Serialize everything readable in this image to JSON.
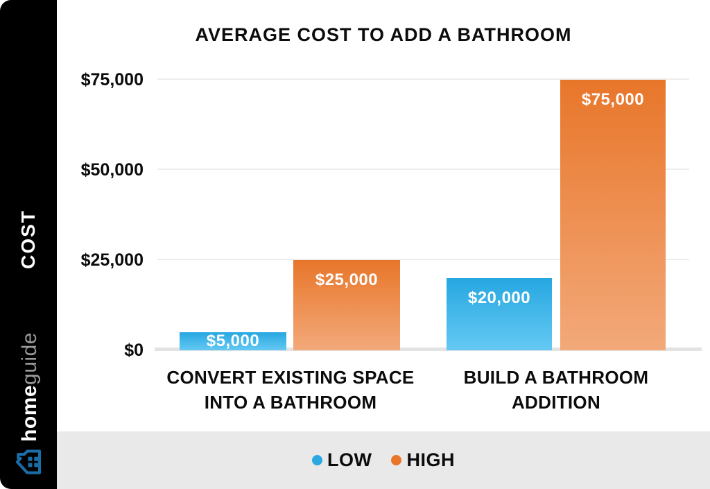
{
  "sidebar": {
    "axis_label": "COST",
    "brand": {
      "bold": "home",
      "light": "guide"
    },
    "house_color": "#1a6da5"
  },
  "chart_data": {
    "type": "bar",
    "title": "AVERAGE COST TO ADD A BATHROOM",
    "ylabel": "COST",
    "xlabel": "",
    "categories": [
      "CONVERT EXISTING SPACE INTO A BATHROOM",
      "BUILD A BATHROOM ADDITION"
    ],
    "category_lines": [
      [
        "CONVERT EXISTING SPACE",
        "INTO A BATHROOM"
      ],
      [
        "BUILD A BATHROOM",
        "ADDITION"
      ]
    ],
    "series": [
      {
        "name": "LOW",
        "color": "#29a9e0",
        "values": [
          5000,
          20000
        ],
        "labels": [
          "$5,000",
          "$20,000"
        ]
      },
      {
        "name": "HIGH",
        "color": "#e8762a",
        "values": [
          25000,
          75000
        ],
        "labels": [
          "$25,000",
          "$75,000"
        ]
      }
    ],
    "y_ticks": [
      {
        "value": 75000,
        "label": "$75,000"
      },
      {
        "value": 50000,
        "label": "$50,000"
      },
      {
        "value": 25000,
        "label": "$25,000"
      },
      {
        "value": 0,
        "label": "$0"
      }
    ],
    "ylim": [
      0,
      75000
    ],
    "grid": "horizontal",
    "legend_position": "bottom"
  },
  "legend": {
    "items": [
      {
        "label": "LOW",
        "color": "#29a9e0"
      },
      {
        "label": "HIGH",
        "color": "#e8762a"
      }
    ]
  }
}
